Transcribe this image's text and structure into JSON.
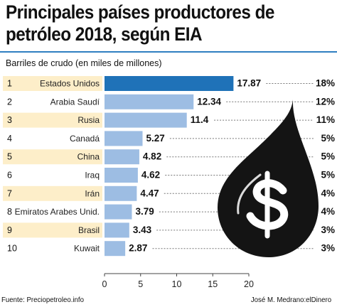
{
  "title": "Principales países productores de petróleo 2018, según EIA",
  "subtitle": "Barriles de crudo (en miles de millones)",
  "source": "Fuente: Precio​petroleo.info",
  "credit": "José M. Medrano:elDinero",
  "colors": {
    "highlight_bar": "#1f72b8",
    "bar": "#9dbde3",
    "odd_row_label": "#fdeec9",
    "even_row_label": "#ffffff",
    "drop": "#141414",
    "rule": "#2f7fc1"
  },
  "icons": [
    "oil-drop-dollar-icon"
  ],
  "chart_data": {
    "type": "bar",
    "orientation": "horizontal",
    "categories": [
      "Estados Unidos",
      "Arabia Saudí",
      "Rusia",
      "Canadá",
      "China",
      "Iraq",
      "Irán",
      "Emiratos Arabes Unid.",
      "Brasil",
      "Kuwait"
    ],
    "ranks": [
      "1",
      "2",
      "3",
      "4",
      "5",
      "6",
      "7",
      "8",
      "9",
      "10"
    ],
    "values": [
      17.87,
      12.34,
      11.4,
      5.27,
      4.82,
      4.62,
      4.47,
      3.79,
      3.43,
      2.87
    ],
    "value_labels": [
      "17.87",
      "12.34",
      "11.4",
      "5.27",
      "4.82",
      "4.62",
      "4.47",
      "3.79",
      "3.43",
      "2.87"
    ],
    "shares": [
      "18%",
      "12%",
      "11%",
      "5%",
      "5%",
      "5%",
      "4%",
      "4%",
      "3%",
      "3%"
    ],
    "xlim": [
      0,
      20
    ],
    "xticks": [
      0,
      5,
      10,
      15,
      20
    ],
    "highlight_index": 0,
    "grid": false
  }
}
